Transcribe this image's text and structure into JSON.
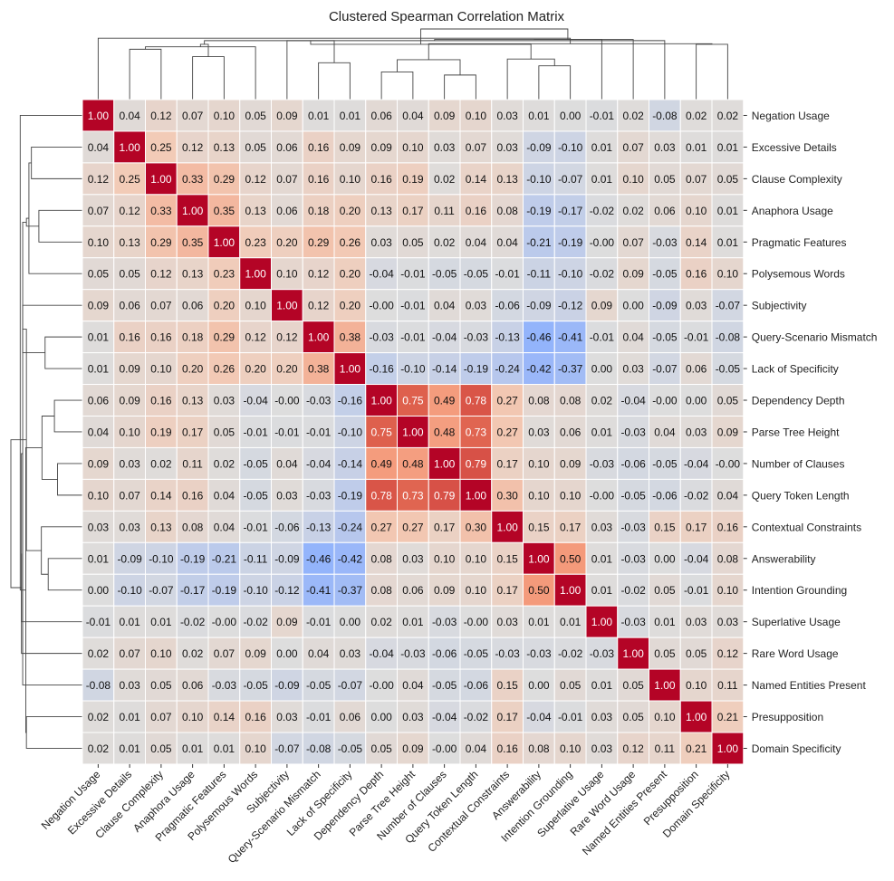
{
  "chart_data": {
    "type": "heatmap",
    "title": "Clustered Spearman Correlation Matrix",
    "labels": [
      "Negation Usage",
      "Excessive Details",
      "Clause Complexity",
      "Anaphora Usage",
      "Pragmatic Features",
      "Polysemous Words",
      "Subjectivity",
      "Query-Scenario Mismatch",
      "Lack of Specificity",
      "Dependency Depth",
      "Parse Tree Height",
      "Number of Clauses",
      "Query Token Length",
      "Contextual Constraints",
      "Answerability",
      "Intention Grounding",
      "Superlative Usage",
      "Rare Word Usage",
      "Named Entities Present",
      "Presupposition",
      "Domain Specificity"
    ],
    "matrix": [
      [
        "1.00",
        "0.04",
        "0.12",
        "0.07",
        "0.10",
        "0.05",
        "0.09",
        "0.01",
        "0.01",
        "0.06",
        "0.04",
        "0.09",
        "0.10",
        "0.03",
        "0.01",
        "0.00",
        "-0.01",
        "0.02",
        "-0.08",
        "0.02",
        "0.02"
      ],
      [
        "0.04",
        "1.00",
        "0.25",
        "0.12",
        "0.13",
        "0.05",
        "0.06",
        "0.16",
        "0.09",
        "0.09",
        "0.10",
        "0.03",
        "0.07",
        "0.03",
        "-0.09",
        "-0.10",
        "0.01",
        "0.07",
        "0.03",
        "0.01",
        "0.01"
      ],
      [
        "0.12",
        "0.25",
        "1.00",
        "0.33",
        "0.29",
        "0.12",
        "0.07",
        "0.16",
        "0.10",
        "0.16",
        "0.19",
        "0.02",
        "0.14",
        "0.13",
        "-0.10",
        "-0.07",
        "0.01",
        "0.10",
        "0.05",
        "0.07",
        "0.05"
      ],
      [
        "0.07",
        "0.12",
        "0.33",
        "1.00",
        "0.35",
        "0.13",
        "0.06",
        "0.18",
        "0.20",
        "0.13",
        "0.17",
        "0.11",
        "0.16",
        "0.08",
        "-0.19",
        "-0.17",
        "-0.02",
        "0.02",
        "0.06",
        "0.10",
        "0.01"
      ],
      [
        "0.10",
        "0.13",
        "0.29",
        "0.35",
        "1.00",
        "0.23",
        "0.20",
        "0.29",
        "0.26",
        "0.03",
        "0.05",
        "0.02",
        "0.04",
        "0.04",
        "-0.21",
        "-0.19",
        "-0.00",
        "0.07",
        "-0.03",
        "0.14",
        "0.01"
      ],
      [
        "0.05",
        "0.05",
        "0.12",
        "0.13",
        "0.23",
        "1.00",
        "0.10",
        "0.12",
        "0.20",
        "-0.04",
        "-0.01",
        "-0.05",
        "-0.05",
        "-0.01",
        "-0.11",
        "-0.10",
        "-0.02",
        "0.09",
        "-0.05",
        "0.16",
        "0.10"
      ],
      [
        "0.09",
        "0.06",
        "0.07",
        "0.06",
        "0.20",
        "0.10",
        "1.00",
        "0.12",
        "0.20",
        "-0.00",
        "-0.01",
        "0.04",
        "0.03",
        "-0.06",
        "-0.09",
        "-0.12",
        "0.09",
        "0.00",
        "-0.09",
        "0.03",
        "-0.07"
      ],
      [
        "0.01",
        "0.16",
        "0.16",
        "0.18",
        "0.29",
        "0.12",
        "0.12",
        "1.00",
        "0.38",
        "-0.03",
        "-0.01",
        "-0.04",
        "-0.03",
        "-0.13",
        "-0.46",
        "-0.41",
        "-0.01",
        "0.04",
        "-0.05",
        "-0.01",
        "-0.08"
      ],
      [
        "0.01",
        "0.09",
        "0.10",
        "0.20",
        "0.26",
        "0.20",
        "0.20",
        "0.38",
        "1.00",
        "-0.16",
        "-0.10",
        "-0.14",
        "-0.19",
        "-0.24",
        "-0.42",
        "-0.37",
        "0.00",
        "0.03",
        "-0.07",
        "0.06",
        "-0.05"
      ],
      [
        "0.06",
        "0.09",
        "0.16",
        "0.13",
        "0.03",
        "-0.04",
        "-0.00",
        "-0.03",
        "-0.16",
        "1.00",
        "0.75",
        "0.49",
        "0.78",
        "0.27",
        "0.08",
        "0.08",
        "0.02",
        "-0.04",
        "-0.00",
        "0.00",
        "0.05"
      ],
      [
        "0.04",
        "0.10",
        "0.19",
        "0.17",
        "0.05",
        "-0.01",
        "-0.01",
        "-0.01",
        "-0.10",
        "0.75",
        "1.00",
        "0.48",
        "0.73",
        "0.27",
        "0.03",
        "0.06",
        "0.01",
        "-0.03",
        "0.04",
        "0.03",
        "0.09"
      ],
      [
        "0.09",
        "0.03",
        "0.02",
        "0.11",
        "0.02",
        "-0.05",
        "0.04",
        "-0.04",
        "-0.14",
        "0.49",
        "0.48",
        "1.00",
        "0.79",
        "0.17",
        "0.10",
        "0.09",
        "-0.03",
        "-0.06",
        "-0.05",
        "-0.04",
        "-0.00"
      ],
      [
        "0.10",
        "0.07",
        "0.14",
        "0.16",
        "0.04",
        "-0.05",
        "0.03",
        "-0.03",
        "-0.19",
        "0.78",
        "0.73",
        "0.79",
        "1.00",
        "0.30",
        "0.10",
        "0.10",
        "-0.00",
        "-0.05",
        "-0.06",
        "-0.02",
        "0.04"
      ],
      [
        "0.03",
        "0.03",
        "0.13",
        "0.08",
        "0.04",
        "-0.01",
        "-0.06",
        "-0.13",
        "-0.24",
        "0.27",
        "0.27",
        "0.17",
        "0.30",
        "1.00",
        "0.15",
        "0.17",
        "0.03",
        "-0.03",
        "0.15",
        "0.17",
        "0.16"
      ],
      [
        "0.01",
        "-0.09",
        "-0.10",
        "-0.19",
        "-0.21",
        "-0.11",
        "-0.09",
        "-0.46",
        "-0.42",
        "0.08",
        "0.03",
        "0.10",
        "0.10",
        "0.15",
        "1.00",
        "0.50",
        "0.01",
        "-0.03",
        "0.00",
        "-0.04",
        "0.08"
      ],
      [
        "0.00",
        "-0.10",
        "-0.07",
        "-0.17",
        "-0.19",
        "-0.10",
        "-0.12",
        "-0.41",
        "-0.37",
        "0.08",
        "0.06",
        "0.09",
        "0.10",
        "0.17",
        "0.50",
        "1.00",
        "0.01",
        "-0.02",
        "0.05",
        "-0.01",
        "0.10"
      ],
      [
        "-0.01",
        "0.01",
        "0.01",
        "-0.02",
        "-0.00",
        "-0.02",
        "0.09",
        "-0.01",
        "0.00",
        "0.02",
        "0.01",
        "-0.03",
        "-0.00",
        "0.03",
        "0.01",
        "0.01",
        "1.00",
        "-0.03",
        "0.01",
        "0.03",
        "0.03"
      ],
      [
        "0.02",
        "0.07",
        "0.10",
        "0.02",
        "0.07",
        "0.09",
        "0.00",
        "0.04",
        "0.03",
        "-0.04",
        "-0.03",
        "-0.06",
        "-0.05",
        "-0.03",
        "-0.03",
        "-0.02",
        "-0.03",
        "1.00",
        "0.05",
        "0.05",
        "0.12"
      ],
      [
        "-0.08",
        "0.03",
        "0.05",
        "0.06",
        "-0.03",
        "-0.05",
        "-0.09",
        "-0.05",
        "-0.07",
        "-0.00",
        "0.04",
        "-0.05",
        "-0.06",
        "0.15",
        "0.00",
        "0.05",
        "0.01",
        "0.05",
        "1.00",
        "0.10",
        "0.11"
      ],
      [
        "0.02",
        "0.01",
        "0.07",
        "0.10",
        "0.14",
        "0.16",
        "0.03",
        "-0.01",
        "0.06",
        "0.00",
        "0.03",
        "-0.04",
        "-0.02",
        "0.17",
        "-0.04",
        "-0.01",
        "0.03",
        "0.05",
        "0.10",
        "1.00",
        "0.21"
      ],
      [
        "0.02",
        "0.01",
        "0.05",
        "0.01",
        "0.01",
        "0.10",
        "-0.07",
        "-0.08",
        "-0.05",
        "0.05",
        "0.09",
        "-0.00",
        "0.04",
        "0.16",
        "0.08",
        "0.10",
        "0.03",
        "0.12",
        "0.11",
        "0.21",
        "1.00"
      ]
    ],
    "vmin": -1,
    "vmax": 1,
    "colormap": "coolwarm",
    "cluster_merges": [
      [
        9,
        10,
        0.45
      ],
      [
        11,
        12,
        0.4
      ],
      [
        14,
        15,
        0.55
      ],
      [
        7,
        8,
        0.6
      ],
      [
        21,
        22,
        0.65
      ],
      [
        3,
        4,
        0.7
      ],
      [
        1,
        2,
        0.82
      ],
      [
        27,
        5,
        0.86
      ],
      [
        26,
        28,
        0.9
      ],
      [
        19,
        20,
        0.9
      ],
      [
        25,
        30,
        0.91
      ],
      [
        6,
        24,
        0.96
      ],
      [
        18,
        29,
        0.96
      ],
      [
        17,
        33,
        0.98
      ],
      [
        13,
        23,
        0.66
      ],
      [
        34,
        16,
        0.98
      ],
      [
        35,
        32,
        0.9
      ],
      [
        31,
        0,
        1.0
      ],
      [
        36,
        37,
        1.15
      ]
    ],
    "colors": {
      "diagonal": "#b40426",
      "background": "#ffffff",
      "grid": "#ffffff",
      "dendrogram": "#444444",
      "text_dark": "#111111",
      "text_light": "#ffffff"
    }
  }
}
